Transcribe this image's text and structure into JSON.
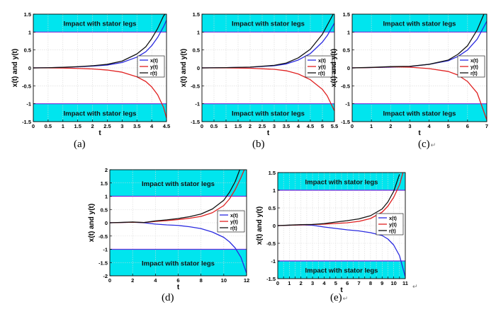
{
  "colors": {
    "band": "#00e5ee",
    "band_line": "#7b2bd9",
    "x": "#2a2ae0",
    "y": "#e02020",
    "r": "#111111"
  },
  "return_mark": "↵",
  "chart_data": [
    {
      "id": "a",
      "type": "line",
      "caption": "(a)",
      "caption_mark": false,
      "xlabel": "t",
      "ylabel": "x(t) and y(t)",
      "xlim": [
        0,
        4.5
      ],
      "ylim": [
        -1.5,
        1.5
      ],
      "xticks": [
        "0",
        "0.5",
        "1",
        "1.5",
        "2",
        "2.5",
        "3",
        "3.5",
        "4",
        "4.5"
      ],
      "yticks": [
        "-1.5",
        "-1",
        "-0.5",
        "0",
        "0.5",
        "1",
        "1.5"
      ],
      "band_label": "Impact with stator legs",
      "band_threshold": 1,
      "legend": [
        "x(t)",
        "y(t)",
        "r(t)"
      ],
      "series": [
        {
          "name": "x(t)",
          "x": [
            0,
            0.5,
            1,
            1.5,
            2,
            2.5,
            3,
            3.5,
            3.8,
            4,
            4.2,
            4.4,
            4.5
          ],
          "y": [
            0,
            0.005,
            0.015,
            0.03,
            0.05,
            0.08,
            0.15,
            0.3,
            0.45,
            0.62,
            0.85,
            1.15,
            1.33
          ]
        },
        {
          "name": "y(t)",
          "x": [
            0,
            0.5,
            1,
            1.5,
            2,
            2.5,
            3,
            3.5,
            3.8,
            4,
            4.2,
            4.4,
            4.5
          ],
          "y": [
            0,
            0,
            -0.005,
            -0.015,
            -0.03,
            -0.06,
            -0.12,
            -0.25,
            -0.38,
            -0.53,
            -0.75,
            -1.1,
            -1.4
          ]
        },
        {
          "name": "r(t)",
          "x": [
            0,
            0.5,
            1,
            1.5,
            2,
            2.5,
            3,
            3.5,
            3.8,
            4,
            4.2,
            4.4,
            4.45
          ],
          "y": [
            0,
            0.005,
            0.016,
            0.034,
            0.06,
            0.1,
            0.19,
            0.39,
            0.59,
            0.82,
            1.1,
            1.45,
            1.5
          ]
        }
      ]
    },
    {
      "id": "b",
      "type": "line",
      "caption": "(b)",
      "caption_mark": false,
      "xlabel": "t",
      "ylabel": "x(t) and y(t)",
      "xlim": [
        0,
        5.5
      ],
      "ylim": [
        -1.5,
        1.5
      ],
      "xticks": [
        "0",
        "0.5",
        "1",
        "1.5",
        "2",
        "2.5",
        "3",
        "3.5",
        "4",
        "4.5",
        "5",
        "5.5"
      ],
      "yticks": [
        "-1.5",
        "-1",
        "-0.5",
        "0",
        "0.5",
        "1",
        "1.5"
      ],
      "band_label": "Impact with stator legs",
      "band_threshold": 1,
      "legend": [
        "x(t)",
        "y(t)",
        "r(t)"
      ],
      "series": [
        {
          "name": "x(t)",
          "x": [
            0,
            1,
            2,
            3,
            3.5,
            4,
            4.5,
            5,
            5.2,
            5.5
          ],
          "y": [
            0,
            0.008,
            0.02,
            0.06,
            0.11,
            0.22,
            0.4,
            0.72,
            0.9,
            1.25
          ]
        },
        {
          "name": "y(t)",
          "x": [
            0,
            1,
            2,
            3,
            3.5,
            4,
            4.5,
            5,
            5.2,
            5.5
          ],
          "y": [
            0,
            0,
            -0.01,
            -0.04,
            -0.08,
            -0.17,
            -0.33,
            -0.6,
            -0.78,
            -1.2
          ]
        },
        {
          "name": "r(t)",
          "x": [
            0,
            1,
            2,
            3,
            3.5,
            4,
            4.5,
            5,
            5.2,
            5.45
          ],
          "y": [
            0,
            0.008,
            0.022,
            0.072,
            0.136,
            0.28,
            0.52,
            0.94,
            1.19,
            1.5
          ]
        }
      ]
    },
    {
      "id": "c",
      "type": "line",
      "caption": "(c)",
      "caption_mark": true,
      "xlabel": "t",
      "ylabel": "x(t) and y(t)",
      "xlim": [
        0,
        7
      ],
      "ylim": [
        -1.5,
        1.5
      ],
      "xticks": [
        "0",
        "1",
        "2",
        "3",
        "4",
        "5",
        "6",
        "7"
      ],
      "yticks": [
        "-1.5",
        "-1",
        "-0.5",
        "0",
        "0.5",
        "1",
        "1.5"
      ],
      "band_label": "Impact with stator legs",
      "band_threshold": 1,
      "legend": [
        "x(t)",
        "y(t)",
        "r(t)"
      ],
      "series": [
        {
          "name": "x(t)",
          "x": [
            0,
            1,
            2,
            3,
            4,
            5,
            5.5,
            6,
            6.5,
            7
          ],
          "y": [
            0,
            0.01,
            0.02,
            0.04,
            0.1,
            0.2,
            0.32,
            0.5,
            0.8,
            1.3
          ]
        },
        {
          "name": "y(t)",
          "x": [
            0,
            1,
            2,
            3,
            4,
            5,
            5.5,
            6,
            6.5,
            7
          ],
          "y": [
            0,
            0.01,
            0.03,
            0.02,
            -0.02,
            -0.1,
            -0.2,
            -0.38,
            -0.7,
            -1.45
          ]
        },
        {
          "name": "r(t)",
          "x": [
            0,
            1,
            2,
            3,
            4,
            5,
            5.5,
            6,
            6.5,
            6.85
          ],
          "y": [
            0,
            0.014,
            0.036,
            0.045,
            0.1,
            0.22,
            0.38,
            0.62,
            1.06,
            1.5
          ]
        }
      ]
    },
    {
      "id": "d",
      "type": "line",
      "caption": "(d)",
      "caption_mark": false,
      "xlabel": "t",
      "ylabel": "x(t) and y(t)",
      "xlim": [
        0,
        12
      ],
      "ylim": [
        -2,
        2
      ],
      "xticks": [
        "0",
        "2",
        "4",
        "6",
        "8",
        "10",
        "12"
      ],
      "yticks": [
        "-2",
        "-1.5",
        "-1",
        "-0.5",
        "0",
        "0.5",
        "1",
        "1.5",
        "2"
      ],
      "band_label": "Impact with stator legs",
      "band_threshold": 1,
      "legend": [
        "x(t)",
        "y(t)",
        "r(t)"
      ],
      "series": [
        {
          "name": "x(t)",
          "x": [
            0,
            2,
            3,
            4,
            5,
            6,
            7,
            8,
            9,
            10,
            10.5,
            11,
            11.5,
            12
          ],
          "y": [
            0,
            0.02,
            0,
            -0.05,
            -0.08,
            -0.1,
            -0.15,
            -0.22,
            -0.35,
            -0.55,
            -0.72,
            -0.95,
            -1.3,
            -1.9
          ]
        },
        {
          "name": "y(t)",
          "x": [
            0,
            2,
            3,
            4,
            5,
            6,
            7,
            8,
            9,
            10,
            10.5,
            11,
            11.5,
            11.8
          ],
          "y": [
            0,
            0.02,
            0.01,
            0.05,
            0.08,
            0.12,
            0.17,
            0.24,
            0.38,
            0.65,
            0.9,
            1.25,
            1.7,
            2
          ]
        },
        {
          "name": "r(t)",
          "x": [
            0,
            2,
            3,
            4,
            5,
            6,
            7,
            8,
            9,
            10,
            10.5,
            11,
            11.4
          ],
          "y": [
            0,
            0.028,
            0.01,
            0.07,
            0.11,
            0.16,
            0.23,
            0.33,
            0.52,
            0.85,
            1.15,
            1.55,
            2
          ]
        }
      ]
    },
    {
      "id": "e",
      "type": "line",
      "caption": "(e)",
      "caption_mark": true,
      "xlabel": "t",
      "ylabel": "x(t) and y(t)",
      "xlim": [
        0,
        11
      ],
      "ylim": [
        -1.5,
        1.5
      ],
      "xticks": [
        "0",
        "0.5",
        "1",
        "1.5",
        "2",
        "2.5",
        "3",
        "3.5",
        "4",
        "4.5",
        "5",
        "5.5",
        "6",
        "6.5",
        "7",
        "7.5",
        "8",
        "8.5",
        "9",
        "9.5",
        "10",
        "10.5",
        "11"
      ],
      "xtick_labels": [
        "0",
        "1",
        "2",
        "3",
        "4",
        "5",
        "6",
        "7",
        "8",
        "9",
        "10",
        "11"
      ],
      "yticks": [
        "-1.5",
        "-1",
        "-0.5",
        "0",
        "0.5",
        "1",
        "1.5"
      ],
      "band_label": "Impact with stator legs",
      "band_threshold": 1,
      "legend": [
        "x(t)",
        "y(t)",
        "r(t)"
      ],
      "series": [
        {
          "name": "x(t)",
          "x": [
            0,
            1,
            2,
            3,
            4,
            5,
            6,
            7,
            8,
            9,
            9.5,
            10,
            10.5,
            11
          ],
          "y": [
            0,
            0.01,
            0.02,
            0.01,
            -0.04,
            -0.08,
            -0.12,
            -0.15,
            -0.2,
            -0.28,
            -0.38,
            -0.55,
            -0.85,
            -1.45
          ]
        },
        {
          "name": "y(t)",
          "x": [
            0,
            1,
            2,
            3,
            4,
            5,
            6,
            7,
            8,
            9,
            9.5,
            10,
            10.5,
            10.8
          ],
          "y": [
            0,
            0.01,
            0.02,
            0.03,
            0.04,
            0.06,
            0.08,
            0.12,
            0.2,
            0.38,
            0.55,
            0.8,
            1.15,
            1.5
          ]
        },
        {
          "name": "r(t)",
          "x": [
            0,
            1,
            2,
            3,
            4,
            5,
            6,
            7,
            8,
            9,
            9.5,
            10,
            10.5
          ],
          "y": [
            0,
            0.014,
            0.028,
            0.032,
            0.057,
            0.1,
            0.14,
            0.19,
            0.28,
            0.47,
            0.67,
            0.97,
            1.45
          ]
        }
      ]
    }
  ]
}
